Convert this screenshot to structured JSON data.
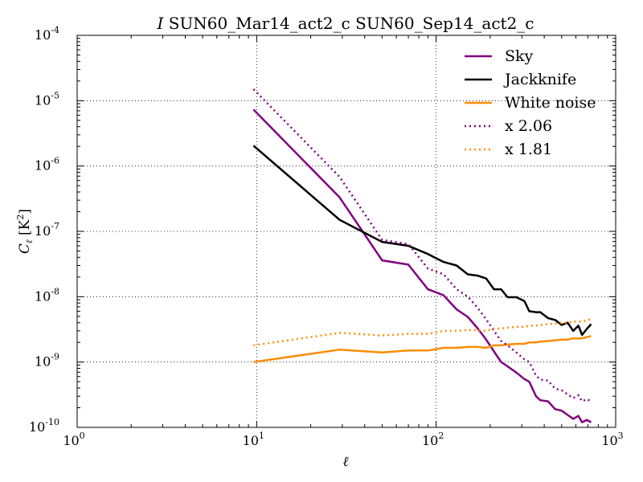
{
  "chart_data": {
    "type": "line",
    "title": "I SUN60_Mar14_act2_c SUN60_Sep14_act2_c",
    "title_italic_prefix": "I",
    "title_rest": "SUN60_Mar14_act2_c SUN60_Sep14_act2_c",
    "xlabel": "ℓ",
    "ylabel_main": "C",
    "ylabel_sub": "ℓ",
    "ylabel_unit": "[K",
    "ylabel_unit_exp": "2",
    "ylabel_unit_end": "]",
    "xscale": "log",
    "yscale": "log",
    "xlim": [
      1,
      1000
    ],
    "ylim": [
      1e-10,
      0.0001
    ],
    "grid": true,
    "legend_position": "top-right",
    "x_ticks": [
      {
        "value": 1,
        "base": "10",
        "exp": "0"
      },
      {
        "value": 10,
        "base": "10",
        "exp": "1"
      },
      {
        "value": 100,
        "base": "10",
        "exp": "2"
      },
      {
        "value": 1000,
        "base": "10",
        "exp": "3"
      }
    ],
    "y_ticks": [
      {
        "value": 1e-10,
        "base": "10",
        "exp": "-10"
      },
      {
        "value": 1e-09,
        "base": "10",
        "exp": "-9"
      },
      {
        "value": 1e-08,
        "base": "10",
        "exp": "-8"
      },
      {
        "value": 1e-07,
        "base": "10",
        "exp": "-7"
      },
      {
        "value": 1e-06,
        "base": "10",
        "exp": "-6"
      },
      {
        "value": 1e-05,
        "base": "10",
        "exp": "-5"
      },
      {
        "value": 0.0001,
        "base": "10",
        "exp": "-4"
      }
    ],
    "series": [
      {
        "name": "Sky",
        "color": "#800080",
        "style": "solid",
        "x": [
          9.6,
          29,
          50,
          70,
          90,
          110,
          130,
          150,
          170,
          190,
          210,
          230,
          250,
          280,
          310,
          330,
          360,
          380,
          420,
          460,
          500,
          540,
          580,
          620,
          650,
          690,
          730
        ],
        "y": [
          7.3e-06,
          3.3e-07,
          3.6e-08,
          3.1e-08,
          1.3e-08,
          1.05e-08,
          6.4e-09,
          4.9e-09,
          3.3e-09,
          2.2e-09,
          1.45e-09,
          1e-09,
          8.6e-10,
          6.9e-10,
          5.5e-10,
          5e-10,
          3e-10,
          2.6e-10,
          2.5e-10,
          1.9e-10,
          1.8e-10,
          1.55e-10,
          1.35e-10,
          1.5e-10,
          1.2e-10,
          1.3e-10,
          1.2e-10
        ]
      },
      {
        "name": "Jackknife",
        "color": "#000000",
        "style": "solid",
        "x": [
          9.6,
          29,
          50,
          70,
          90,
          110,
          130,
          150,
          170,
          190,
          210,
          230,
          250,
          280,
          310,
          330,
          360,
          380,
          420,
          460,
          500,
          540,
          580,
          620,
          650,
          690,
          730
        ],
        "y": [
          2.05e-06,
          1.5e-07,
          6.9e-08,
          6e-08,
          4.5e-08,
          3.4e-08,
          3e-08,
          2.2e-08,
          2.1e-08,
          1.9e-08,
          1.3e-08,
          1.3e-08,
          9.8e-09,
          9.8e-09,
          8.6e-09,
          6e-09,
          5.8e-09,
          5.8e-09,
          4.7e-09,
          4.4e-09,
          3.7e-09,
          4e-09,
          3e-09,
          3.6e-09,
          2.6e-09,
          3.2e-09,
          3.8e-09
        ]
      },
      {
        "name": "White noise",
        "color": "#ff8c00",
        "style": "solid",
        "x": [
          9.6,
          29,
          50,
          70,
          90,
          110,
          130,
          150,
          170,
          190,
          210,
          230,
          250,
          280,
          310,
          330,
          360,
          380,
          420,
          460,
          500,
          540,
          580,
          620,
          650,
          690,
          730
        ],
        "y": [
          1e-09,
          1.55e-09,
          1.4e-09,
          1.5e-09,
          1.5e-09,
          1.65e-09,
          1.65e-09,
          1.7e-09,
          1.7e-09,
          1.65e-09,
          1.8e-09,
          1.8e-09,
          1.85e-09,
          1.9e-09,
          1.9e-09,
          2e-09,
          2e-09,
          2.05e-09,
          2.1e-09,
          2.15e-09,
          2.2e-09,
          2.2e-09,
          2.3e-09,
          2.3e-09,
          2.3e-09,
          2.4e-09,
          2.5e-09
        ]
      },
      {
        "name": "x 2.06",
        "color": "#800080",
        "style": "dotted",
        "x": [
          9.6,
          29,
          50,
          70,
          90,
          110,
          130,
          150,
          170,
          190,
          210,
          230,
          250,
          280,
          310,
          330,
          360,
          380,
          420,
          460,
          500,
          540,
          580,
          620,
          650,
          690,
          730
        ],
        "y": [
          1.5e-05,
          6.8e-07,
          7.4e-08,
          6.4e-08,
          2.7e-08,
          2.2e-08,
          1.3e-08,
          1e-08,
          6.8e-09,
          4.5e-09,
          3e-09,
          2.1e-09,
          1.8e-09,
          1.4e-09,
          1.1e-09,
          1e-09,
          6.2e-10,
          5.4e-10,
          5.2e-10,
          3.9e-10,
          3.7e-10,
          3.2e-10,
          2.8e-10,
          3.1e-10,
          2.5e-10,
          2.7e-10,
          2.5e-10
        ]
      },
      {
        "name": "x 1.81",
        "color": "#ff8c00",
        "style": "dotted",
        "x": [
          9.6,
          29,
          50,
          70,
          90,
          110,
          130,
          150,
          170,
          190,
          210,
          230,
          250,
          280,
          310,
          330,
          360,
          380,
          420,
          460,
          500,
          540,
          580,
          620,
          650,
          690,
          730
        ],
        "y": [
          1.8e-09,
          2.8e-09,
          2.55e-09,
          2.7e-09,
          2.7e-09,
          3e-09,
          3e-09,
          3.1e-09,
          3.1e-09,
          3e-09,
          3.25e-09,
          3.25e-09,
          3.35e-09,
          3.45e-09,
          3.45e-09,
          3.6e-09,
          3.6e-09,
          3.7e-09,
          3.8e-09,
          3.9e-09,
          4e-09,
          4e-09,
          4.15e-09,
          4.15e-09,
          4.15e-09,
          4.35e-09,
          4.55e-09
        ]
      }
    ]
  }
}
